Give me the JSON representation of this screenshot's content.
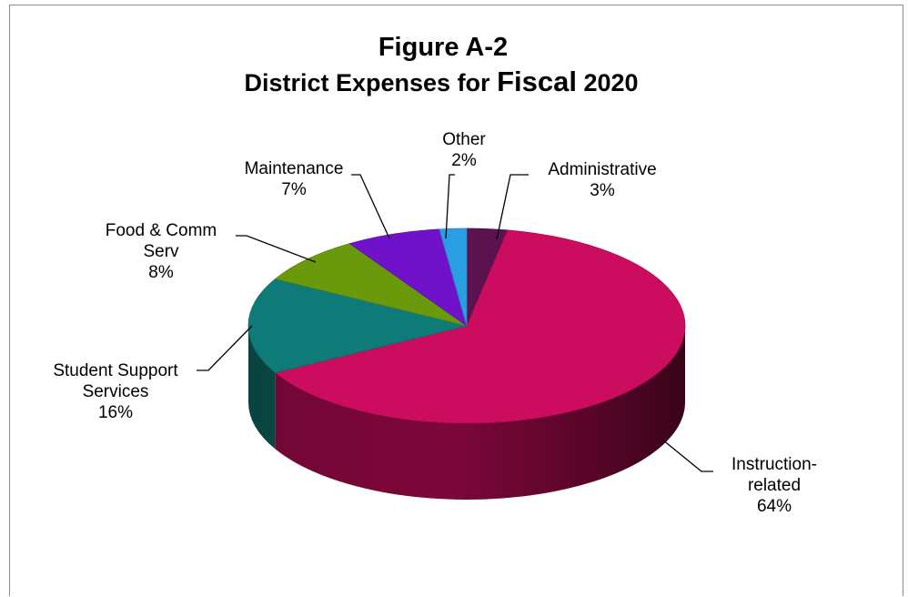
{
  "chart_data": {
    "type": "pie",
    "title_line1": "Figure A-2",
    "title_line2_a": "District Expenses for ",
    "title_line2_b": "Fiscal",
    "title_line2_c": " 2020",
    "slices": [
      {
        "label_lines": [
          "Administrative"
        ],
        "pct_text": "3%",
        "value": 3,
        "color": "#5b1350"
      },
      {
        "label_lines": [
          "Instruction-",
          "related"
        ],
        "pct_text": "64%",
        "value": 64,
        "color": "#cc0c5e"
      },
      {
        "label_lines": [
          "Student Support",
          "Services"
        ],
        "pct_text": "16%",
        "value": 16,
        "color": "#0f7b78"
      },
      {
        "label_lines": [
          "Food & Comm",
          "Serv"
        ],
        "pct_text": "8%",
        "value": 8,
        "color": "#6a9a0c"
      },
      {
        "label_lines": [
          "Maintenance"
        ],
        "pct_text": "7%",
        "value": 7,
        "color": "#6f12c9"
      },
      {
        "label_lines": [
          "Other"
        ],
        "pct_text": "2%",
        "value": 2,
        "color": "#2a9ee3"
      }
    ]
  }
}
